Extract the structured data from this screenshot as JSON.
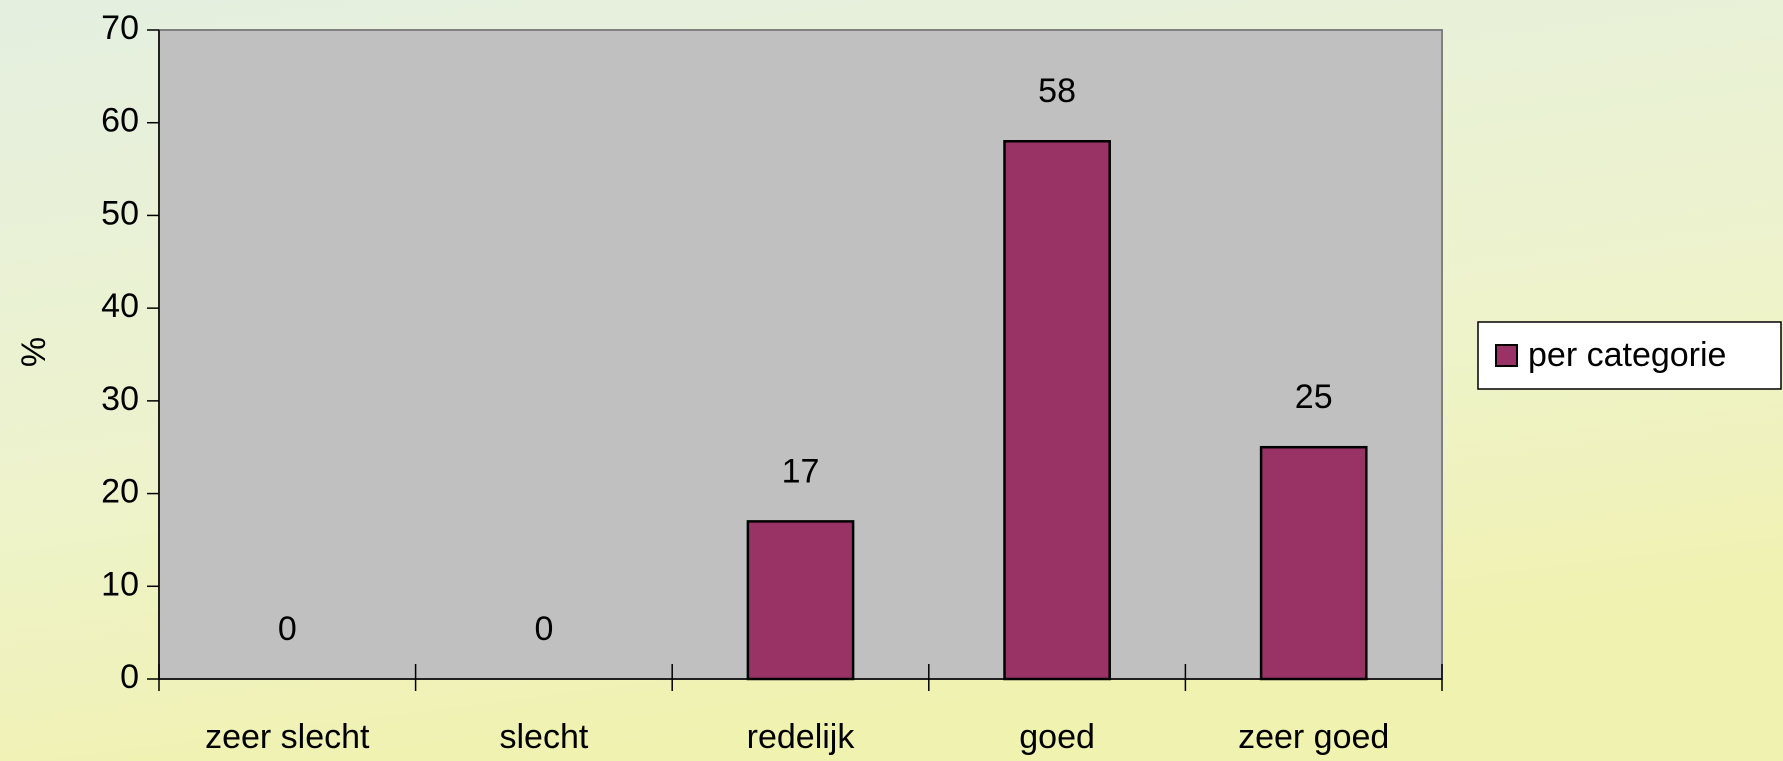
{
  "chart_data": {
    "type": "bar",
    "y_label": "%",
    "categories": [
      "zeer slecht",
      "slecht",
      "redelijk",
      "goed",
      "zeer goed"
    ],
    "series": [
      {
        "name": "per categorie",
        "color": "#993366",
        "values": [
          0,
          0,
          17,
          58,
          25
        ]
      }
    ],
    "ylim": [
      0,
      70
    ],
    "yticks": [
      0,
      10,
      20,
      30,
      40,
      50,
      60,
      70
    ],
    "legend": "right",
    "plot_background": "#c0c0c0"
  }
}
